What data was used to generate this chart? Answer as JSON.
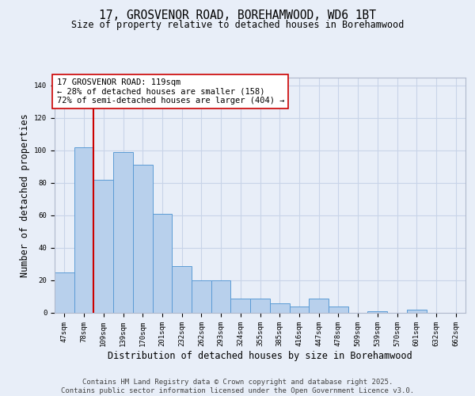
{
  "title_line1": "17, GROSVENOR ROAD, BOREHAMWOOD, WD6 1BT",
  "title_line2": "Size of property relative to detached houses in Borehamwood",
  "xlabel": "Distribution of detached houses by size in Borehamwood",
  "ylabel": "Number of detached properties",
  "categories": [
    "47sqm",
    "78sqm",
    "109sqm",
    "139sqm",
    "170sqm",
    "201sqm",
    "232sqm",
    "262sqm",
    "293sqm",
    "324sqm",
    "355sqm",
    "385sqm",
    "416sqm",
    "447sqm",
    "478sqm",
    "509sqm",
    "539sqm",
    "570sqm",
    "601sqm",
    "632sqm",
    "662sqm"
  ],
  "values": [
    25,
    102,
    82,
    99,
    91,
    61,
    29,
    20,
    20,
    9,
    9,
    6,
    4,
    9,
    4,
    0,
    1,
    0,
    2,
    0,
    0
  ],
  "bar_color": "#b8d0ec",
  "bar_edge_color": "#5b9bd5",
  "vline_color": "#cc0000",
  "vline_index": 1,
  "annotation_text": "17 GROSVENOR ROAD: 119sqm\n← 28% of detached houses are smaller (158)\n72% of semi-detached houses are larger (404) →",
  "annotation_box_fill": "#ffffff",
  "annotation_box_edge": "#cc0000",
  "ylim": [
    0,
    145
  ],
  "yticks": [
    0,
    20,
    40,
    60,
    80,
    100,
    120,
    140
  ],
  "grid_color": "#c8d4e8",
  "background_color": "#e8eef8",
  "footer": "Contains HM Land Registry data © Crown copyright and database right 2025.\nContains public sector information licensed under the Open Government Licence v3.0.",
  "title_fontsize": 10.5,
  "subtitle_fontsize": 8.5,
  "tick_fontsize": 6.5,
  "xlabel_fontsize": 8.5,
  "ylabel_fontsize": 8.5,
  "annotation_fontsize": 7.5,
  "footer_fontsize": 6.5
}
